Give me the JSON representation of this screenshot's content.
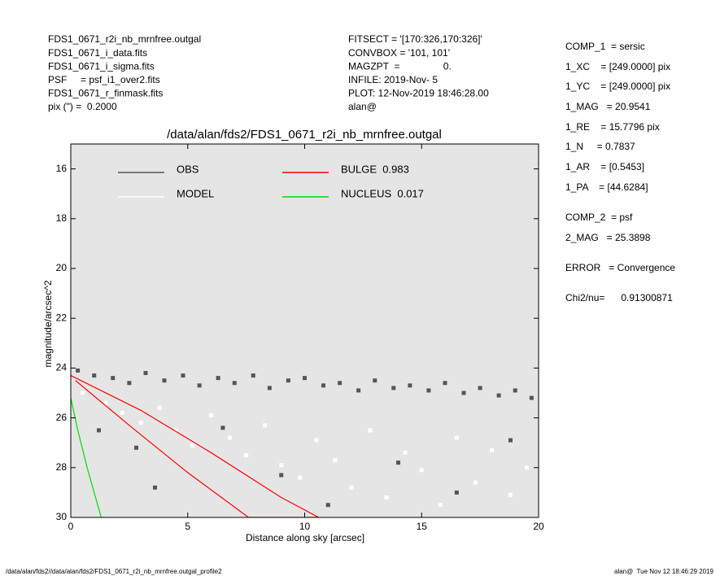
{
  "header_left": [
    "FDS1_0671_r2i_nb_mrnfree.outgal",
    "FDS1_0671_i_data.fits",
    "FDS1_0671_i_sigma.fits",
    "PSF     = psf_i1_over2.fits",
    "FDS1_0671_r_finmask.fits",
    "pix (\") =  0.2000"
  ],
  "header_middle": [
    "FITSECT = '[170:326,170:326]'",
    "CONVBOX = '101, 101'",
    "MAGZPT  =                0.",
    "INFILE: 2019-Nov- 5",
    "PLOT: 12-Nov-2019 18:46:28.00",
    "alan@"
  ],
  "header_right": [
    "COMP_1  = sersic",
    "1_XC    = [249.0000] pix",
    "1_YC    = [249.0000] pix",
    "1_MAG   = 20.9541",
    "1_RE    = 15.7796 pix",
    "1_N     = 0.7837",
    "1_AR    = [0.5453]",
    "1_PA    = [44.6284]",
    "COMP_2  = psf",
    "2_MAG   = 25.3898",
    "ERROR   = Convergence",
    "Chi2/nu=      0.91300871"
  ],
  "footer_left": "/data/alan/fds2//data/alan/fds2/FDS1_0671_r2i_nb_mrnfree.outgal_profile2",
  "footer_right": "alan@  Tue Nov 12 18:46:29 2019",
  "chart_data": {
    "type": "scatter",
    "title": "/data/alan/fds2/FDS1_0671_r2i_nb_mrnfree.outgal",
    "xlabel": "Distance along sky [arcsec]",
    "ylabel": "magnitude/arcsec^2",
    "xlim": [
      0,
      20
    ],
    "xticks": [
      0,
      5,
      10,
      15,
      20
    ],
    "ylim": [
      30,
      15
    ],
    "yticks": [
      16,
      18,
      20,
      22,
      24,
      26,
      28,
      30
    ],
    "background": "#e5e5e5",
    "series": [
      {
        "name": "OBS",
        "color": "#555555",
        "mode": "points",
        "x": [
          0.3,
          1,
          1.8,
          2.5,
          3.2,
          4,
          4.8,
          5.5,
          6.3,
          7,
          7.8,
          8.5,
          9.3,
          10,
          10.8,
          11.5,
          12.3,
          13,
          13.8,
          14.5,
          15.3,
          16,
          16.8,
          17.5,
          18.3,
          19,
          19.7,
          1.2,
          2.8,
          3.6,
          6.5,
          9,
          11,
          14,
          16.5,
          18.8
        ],
        "values": [
          24.1,
          24.3,
          24.4,
          24.6,
          24.2,
          24.5,
          24.3,
          24.7,
          24.4,
          24.6,
          24.3,
          24.8,
          24.5,
          24.4,
          24.7,
          24.6,
          24.9,
          24.5,
          24.8,
          24.7,
          24.9,
          24.6,
          25,
          24.8,
          25.1,
          24.9,
          25.2,
          26.5,
          27.2,
          28.8,
          26.4,
          28.3,
          29.5,
          27.8,
          29,
          26.9
        ]
      },
      {
        "name": "MODEL",
        "color": "#ffffff",
        "mode": "points",
        "x": [
          0.5,
          1.5,
          2.2,
          3,
          3.8,
          4.5,
          5.2,
          6,
          6.8,
          7.5,
          8.3,
          9,
          9.8,
          10.5,
          11.3,
          12,
          12.8,
          13.5,
          14.3,
          15,
          15.8,
          16.5,
          17.3,
          18,
          18.8,
          19.5
        ],
        "values": [
          25,
          25.4,
          25.8,
          26.2,
          25.6,
          26.5,
          27.1,
          25.9,
          26.8,
          27.5,
          26.3,
          27.9,
          28.4,
          26.9,
          27.7,
          28.8,
          26.5,
          29.2,
          27.4,
          28.1,
          29.5,
          26.8,
          28.6,
          27.3,
          29.1,
          28
        ]
      },
      {
        "name": "BULGE  0.983",
        "color": "#ff0000",
        "mode": "line",
        "x": [
          0,
          3,
          6,
          9,
          10.6,
          7.6,
          5,
          2.5,
          0.2
        ],
        "values": [
          24.3,
          25.7,
          27.4,
          29.2,
          30,
          30,
          28.2,
          26.3,
          24.5
        ]
      },
      {
        "name": "NUCLEUS  0.017",
        "color": "#00dd00",
        "mode": "line",
        "x": [
          0,
          0.3,
          0.7,
          1.3
        ],
        "values": [
          25.2,
          26.5,
          28,
          30
        ]
      }
    ]
  }
}
